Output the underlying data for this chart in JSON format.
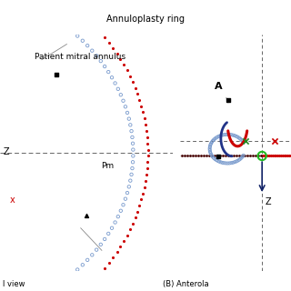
{
  "title": "Annuloplasty ring",
  "left_label": "Z",
  "left_x_label": "x",
  "pm_label": "Pm",
  "right_A_label": "A",
  "right_Z_label": "Z",
  "bottom_left": "l view",
  "bottom_right": "(B) Anterola",
  "bg_color": "#ffffff",
  "red_dot_color": "#cc0000",
  "blue_circle_color": "#7799cc",
  "green_x_color": "#228822",
  "red_x_color": "#cc0000",
  "green_circle_color": "#22bb22",
  "dark_blue_color": "#223388",
  "navy_color": "#112266",
  "annotation_color": "#888888"
}
